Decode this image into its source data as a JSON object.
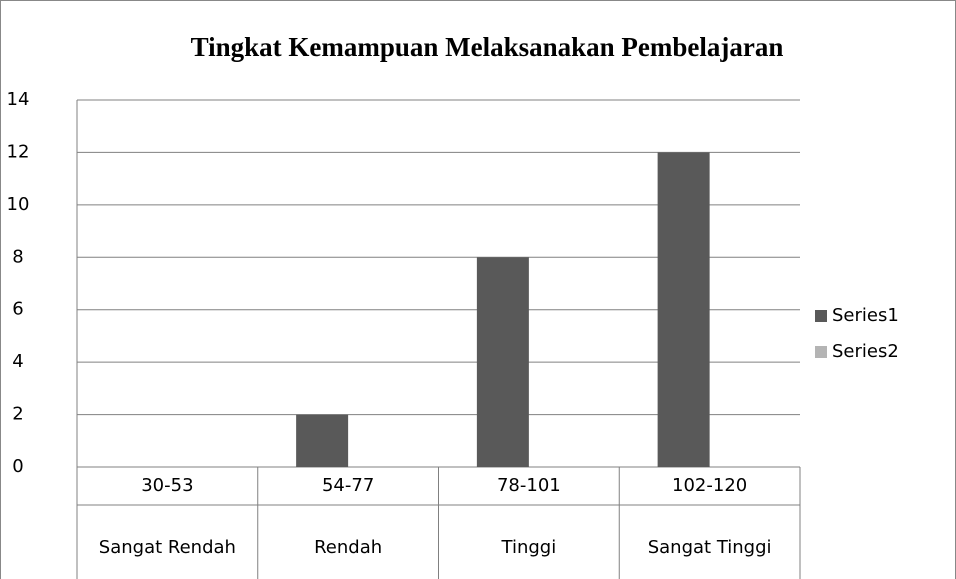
{
  "chart_data": {
    "type": "bar",
    "title": "Tingkat Kemampuan Melaksanakan Pembelajaran",
    "categories": [
      [
        "30-53",
        "Sangat Rendah"
      ],
      [
        "54-77",
        "Rendah"
      ],
      [
        "78-101",
        "Tinggi"
      ],
      [
        "102-120",
        "Sangat Tinggi"
      ]
    ],
    "series": [
      {
        "name": "Series1",
        "color": "#595959",
        "values": [
          0,
          2,
          8,
          12
        ]
      },
      {
        "name": "Series2",
        "color": "#b4b4b4",
        "values": [
          0,
          0,
          0,
          0
        ]
      }
    ],
    "ylim": [
      0,
      14
    ],
    "yticks": [
      0,
      2,
      4,
      6,
      8,
      10,
      12,
      14
    ],
    "grid": true,
    "legend": "right"
  }
}
